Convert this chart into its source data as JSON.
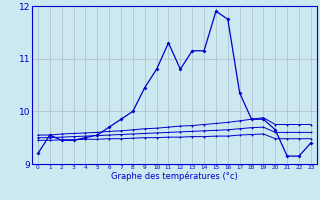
{
  "xlabel": "Graphe des températures (°c)",
  "background_color": "#cce8f0",
  "grid_color": "#aabbcc",
  "line_color": "#0000cc",
  "ylim": [
    9.0,
    12.0
  ],
  "xlim": [
    -0.5,
    23.5
  ],
  "yticks": [
    9,
    10,
    11,
    12
  ],
  "xticks": [
    0,
    1,
    2,
    3,
    4,
    5,
    6,
    7,
    8,
    9,
    10,
    11,
    12,
    13,
    14,
    15,
    16,
    17,
    18,
    19,
    20,
    21,
    22,
    23
  ],
  "series": {
    "temp": [
      9.2,
      9.55,
      9.45,
      9.45,
      9.5,
      9.55,
      9.7,
      9.85,
      10.0,
      10.45,
      10.8,
      11.3,
      10.8,
      11.15,
      11.15,
      11.9,
      11.75,
      10.35,
      9.85,
      9.85,
      9.65,
      9.15,
      9.15,
      9.4
    ],
    "avg_max": [
      9.55,
      9.55,
      9.57,
      9.58,
      9.59,
      9.6,
      9.62,
      9.63,
      9.65,
      9.67,
      9.68,
      9.7,
      9.72,
      9.73,
      9.75,
      9.77,
      9.79,
      9.82,
      9.85,
      9.88,
      9.75,
      9.75,
      9.75,
      9.75
    ],
    "avg": [
      9.5,
      9.5,
      9.51,
      9.52,
      9.53,
      9.54,
      9.55,
      9.56,
      9.57,
      9.58,
      9.59,
      9.6,
      9.61,
      9.62,
      9.63,
      9.64,
      9.65,
      9.67,
      9.69,
      9.7,
      9.6,
      9.6,
      9.6,
      9.6
    ],
    "avg_min": [
      9.45,
      9.45,
      9.46,
      9.46,
      9.47,
      9.47,
      9.48,
      9.48,
      9.49,
      9.5,
      9.5,
      9.51,
      9.51,
      9.52,
      9.52,
      9.53,
      9.53,
      9.55,
      9.56,
      9.57,
      9.48,
      9.48,
      9.48,
      9.48
    ]
  }
}
